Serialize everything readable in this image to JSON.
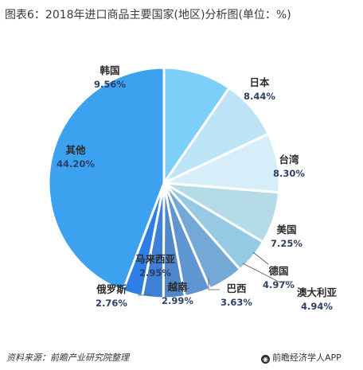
{
  "title": "图表6：2018年进口商品主要国家(地区)分析图(单位：%)",
  "footer": {
    "source": "资料来源：前瞻产业研究院整理",
    "brand": "前瞻经济学人APP"
  },
  "colors": {
    "slices": [
      "#7ccff9",
      "#bde4f6",
      "#d6eef9",
      "#b5dbe8",
      "#96c9e3",
      "#74a9d6",
      "#5f95d0",
      "#4f86cc",
      "#3f7fd6",
      "#2f7ee6",
      "#3ca2ef",
      "#b9d194"
    ],
    "background": "#ffffff"
  },
  "chart_data": {
    "type": "pie",
    "title": "图表6：2018年进口商品主要国家(地区)分析图(单位：%)",
    "categories": [
      "韩国",
      "日本",
      "台湾",
      "美国",
      "德国",
      "澳大利亚",
      "巴西",
      "越南",
      "马来西亚",
      "俄罗斯",
      "其他"
    ],
    "values": [
      9.56,
      8.44,
      8.3,
      7.25,
      4.97,
      4.94,
      3.63,
      2.99,
      2.95,
      2.76,
      44.2
    ],
    "value_labels": [
      "9.56%",
      "8.44%",
      "8.30%",
      "7.25%",
      "4.97%",
      "4.94%",
      "3.63%",
      "2.99%",
      "2.95%",
      "2.76%",
      "44.20%"
    ],
    "start_angle": "12 o'clock",
    "direction": "clockwise",
    "legend": "none",
    "label_position": "outside"
  }
}
